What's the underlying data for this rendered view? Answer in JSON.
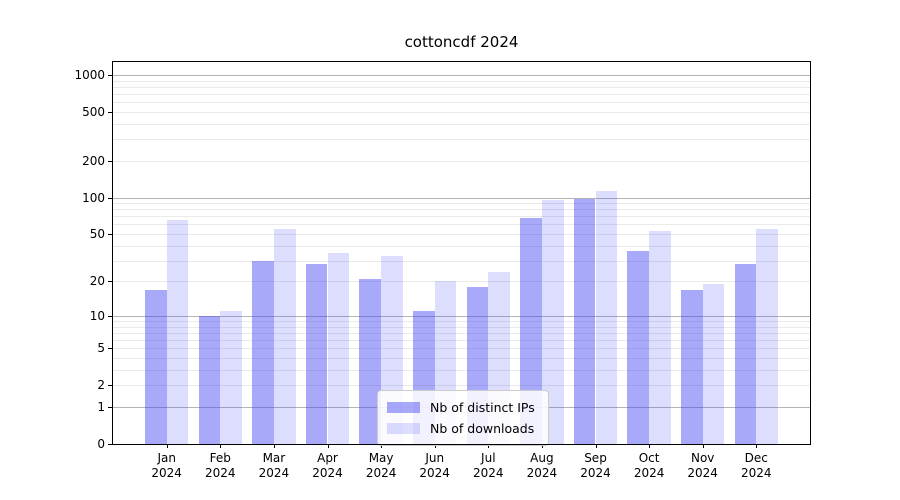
{
  "figure": {
    "title": "cottoncdf 2024"
  },
  "chart_data": {
    "type": "bar",
    "title": "cottoncdf 2024",
    "x_categories": [
      {
        "month": "Jan",
        "year": "2024"
      },
      {
        "month": "Feb",
        "year": "2024"
      },
      {
        "month": "Mar",
        "year": "2024"
      },
      {
        "month": "Apr",
        "year": "2024"
      },
      {
        "month": "May",
        "year": "2024"
      },
      {
        "month": "Jun",
        "year": "2024"
      },
      {
        "month": "Jul",
        "year": "2024"
      },
      {
        "month": "Aug",
        "year": "2024"
      },
      {
        "month": "Sep",
        "year": "2024"
      },
      {
        "month": "Oct",
        "year": "2024"
      },
      {
        "month": "Nov",
        "year": "2024"
      },
      {
        "month": "Dec",
        "year": "2024"
      }
    ],
    "series": [
      {
        "name": "Nb of distinct IPs",
        "color": "#4040f5",
        "alpha": 0.45,
        "values": [
          17,
          10,
          30,
          28,
          21,
          11,
          18,
          68,
          98,
          36,
          17,
          28
        ]
      },
      {
        "name": "Nb of downloads",
        "color": "#4040f5",
        "alpha": 0.18,
        "values": [
          65,
          11,
          55,
          35,
          33,
          20,
          24,
          95,
          113,
          53,
          19,
          55
        ]
      }
    ],
    "y_scale": "log1p",
    "y_axis_ticks": [
      1000,
      500,
      200,
      100,
      50,
      20,
      10,
      5,
      2,
      1,
      0
    ],
    "y_major_gridlines": [
      1,
      10,
      100,
      1000
    ],
    "ylim": [
      0,
      1274
    ],
    "grid": true,
    "legend_position": "lower center",
    "colors": {
      "major_grid": "#b4b4b4",
      "minor_grid": "#eaeaea",
      "spine": "#000000",
      "text": "#000000",
      "legend_border": "#cccccc",
      "legend_bg": "#ffffff"
    }
  }
}
